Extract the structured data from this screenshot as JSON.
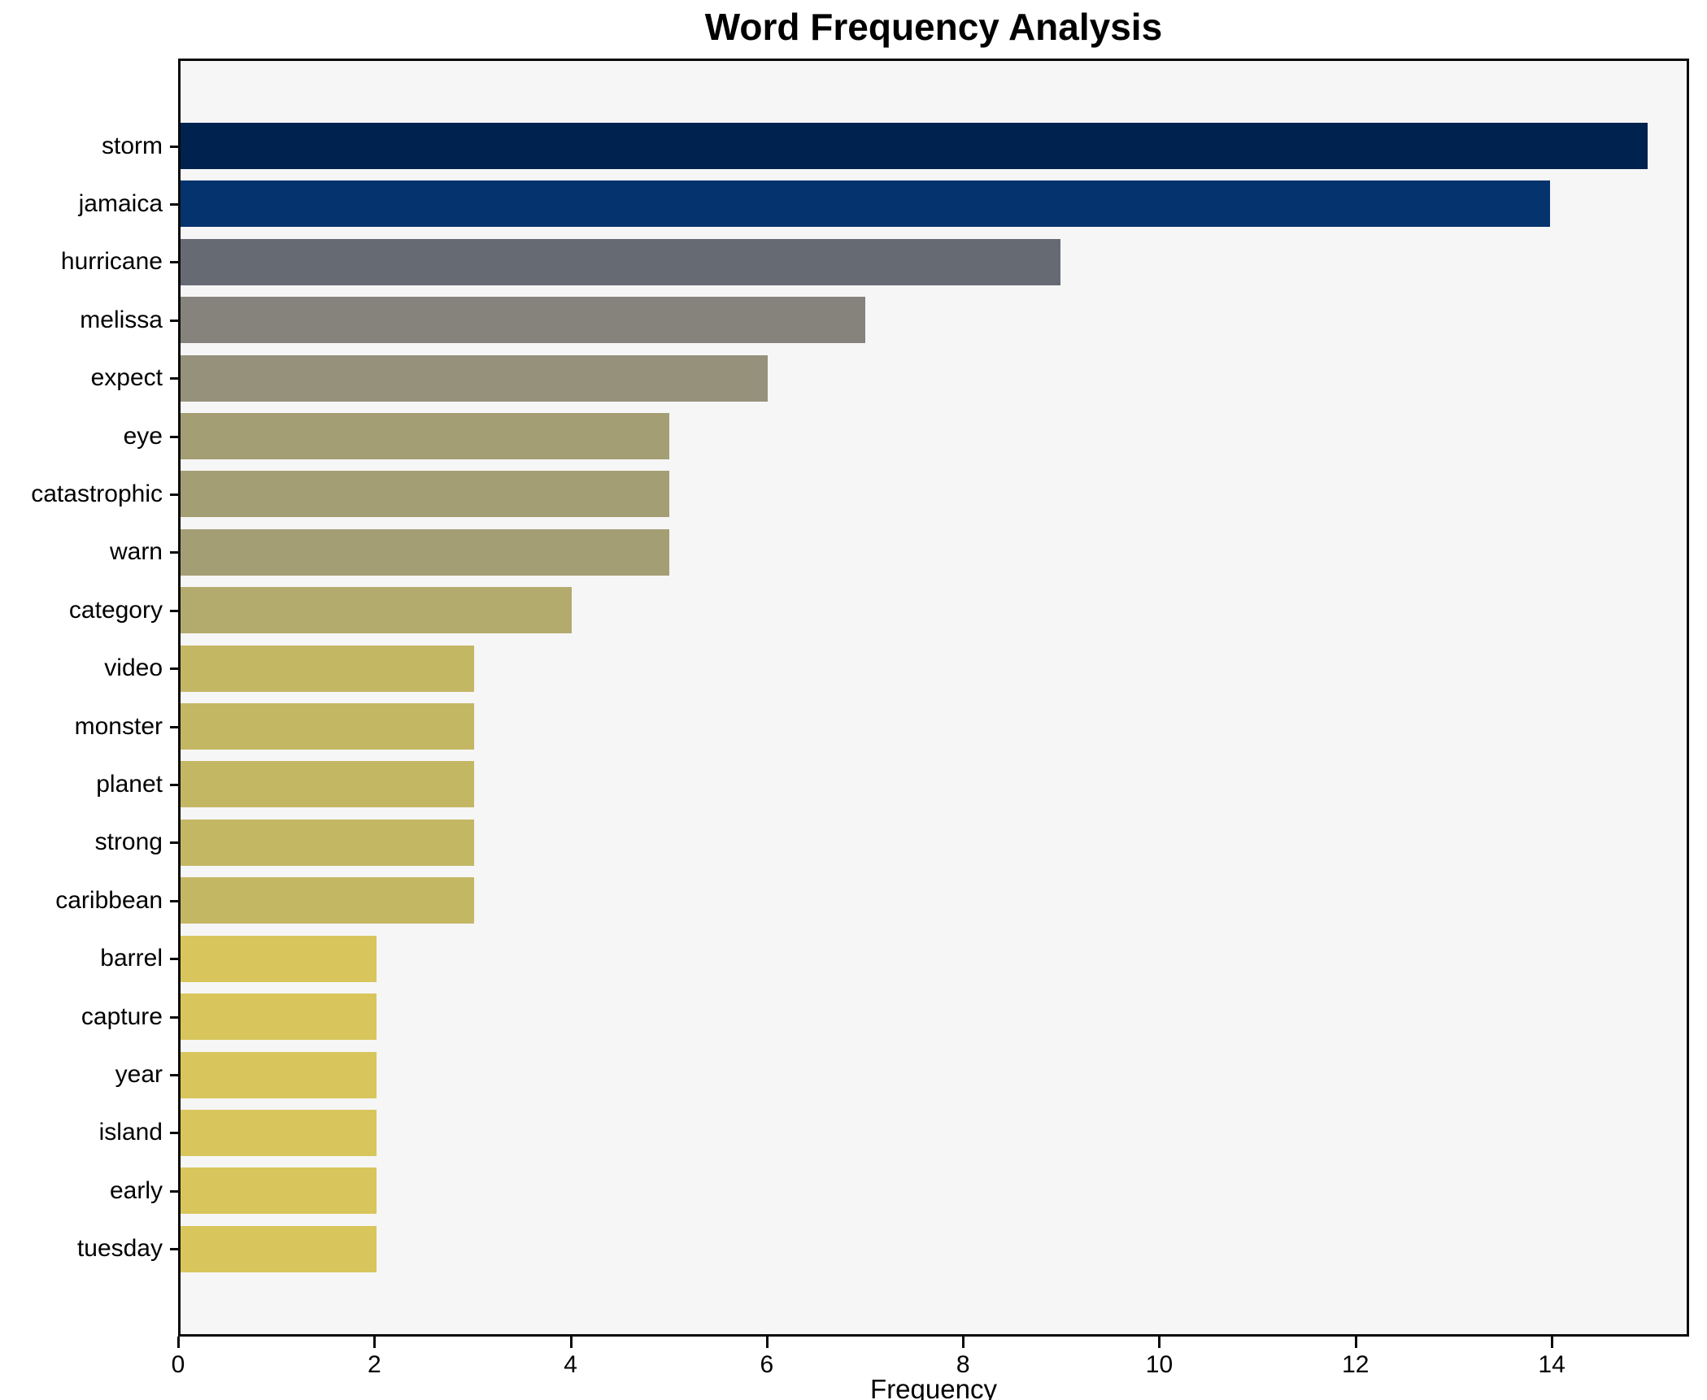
{
  "chart_data": {
    "type": "bar",
    "orientation": "horizontal",
    "title": "Word Frequency Analysis",
    "xlabel": "Frequency",
    "ylabel": "",
    "categories": [
      "storm",
      "jamaica",
      "hurricane",
      "melissa",
      "expect",
      "eye",
      "catastrophic",
      "warn",
      "category",
      "video",
      "monster",
      "planet",
      "strong",
      "caribbean",
      "barrel",
      "capture",
      "year",
      "island",
      "early",
      "tuesday"
    ],
    "values": [
      15,
      14,
      9,
      7,
      6,
      5,
      5,
      5,
      4,
      3,
      3,
      3,
      3,
      3,
      2,
      2,
      2,
      2,
      2,
      2
    ],
    "bar_colors": [
      "#00224e",
      "#05336d",
      "#666a73",
      "#85837b",
      "#95917b",
      "#a49e74",
      "#a49e74",
      "#a49e74",
      "#b3aa6d",
      "#c4b764",
      "#c4b764",
      "#c4b764",
      "#c4b764",
      "#c4b764",
      "#d8c65c",
      "#d8c65c",
      "#d8c65c",
      "#d8c65c",
      "#d8c65c",
      "#d8c65c"
    ],
    "xticks": [
      0,
      2,
      4,
      6,
      8,
      10,
      12,
      14
    ],
    "xlim": [
      0,
      15.4
    ],
    "grid": false,
    "legend_position": "none",
    "plot_background": "#f6f6f7",
    "figure_background": "#ffffff",
    "spine_color": "#0a0a0a",
    "text_color": "#000000"
  }
}
